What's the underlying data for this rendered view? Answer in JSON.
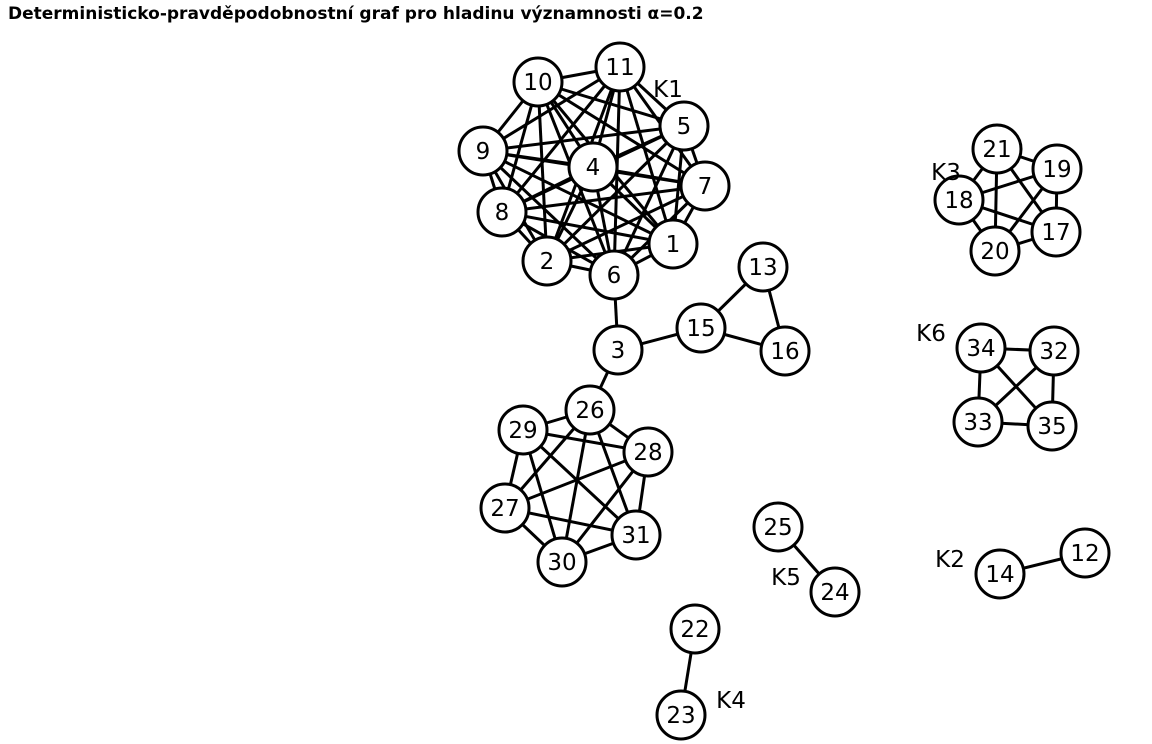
{
  "title": "Deterministicko-pravděpodobnostní graf pro hladinu významnosti α=0.2",
  "colors": {
    "node_fill": "#ffffff",
    "stroke": "#000000",
    "text": "#000000"
  },
  "clusters": [
    {
      "label": "K1",
      "nodes": [
        "1",
        "2",
        "4",
        "5",
        "6",
        "7",
        "8",
        "9",
        "10",
        "11"
      ]
    },
    {
      "label": "K2",
      "nodes": [
        "12",
        "14"
      ]
    },
    {
      "label": "K3",
      "nodes": [
        "17",
        "18",
        "19",
        "20",
        "21"
      ]
    },
    {
      "label": "K4",
      "nodes": [
        "22",
        "23"
      ]
    },
    {
      "label": "K5",
      "nodes": [
        "24",
        "25"
      ]
    },
    {
      "label": "K6",
      "nodes": [
        "32",
        "33",
        "34",
        "35"
      ]
    }
  ],
  "nodes": [
    "1",
    "2",
    "3",
    "4",
    "5",
    "6",
    "7",
    "8",
    "9",
    "10",
    "11",
    "12",
    "13",
    "14",
    "15",
    "16",
    "17",
    "18",
    "19",
    "20",
    "21",
    "22",
    "23",
    "24",
    "25",
    "26",
    "27",
    "28",
    "29",
    "30",
    "31",
    "32",
    "33",
    "34",
    "35"
  ],
  "edges": [
    [
      "1",
      "2"
    ],
    [
      "1",
      "4"
    ],
    [
      "1",
      "5"
    ],
    [
      "1",
      "6"
    ],
    [
      "1",
      "7"
    ],
    [
      "1",
      "8"
    ],
    [
      "1",
      "9"
    ],
    [
      "1",
      "10"
    ],
    [
      "1",
      "11"
    ],
    [
      "2",
      "4"
    ],
    [
      "2",
      "5"
    ],
    [
      "2",
      "6"
    ],
    [
      "2",
      "7"
    ],
    [
      "2",
      "8"
    ],
    [
      "2",
      "9"
    ],
    [
      "2",
      "10"
    ],
    [
      "2",
      "11"
    ],
    [
      "4",
      "5"
    ],
    [
      "4",
      "6"
    ],
    [
      "4",
      "7"
    ],
    [
      "4",
      "8"
    ],
    [
      "4",
      "9"
    ],
    [
      "4",
      "10"
    ],
    [
      "4",
      "11"
    ],
    [
      "5",
      "6"
    ],
    [
      "5",
      "7"
    ],
    [
      "5",
      "8"
    ],
    [
      "5",
      "9"
    ],
    [
      "5",
      "10"
    ],
    [
      "5",
      "11"
    ],
    [
      "6",
      "7"
    ],
    [
      "6",
      "8"
    ],
    [
      "6",
      "9"
    ],
    [
      "6",
      "10"
    ],
    [
      "6",
      "11"
    ],
    [
      "7",
      "8"
    ],
    [
      "7",
      "9"
    ],
    [
      "7",
      "10"
    ],
    [
      "7",
      "11"
    ],
    [
      "8",
      "9"
    ],
    [
      "8",
      "10"
    ],
    [
      "8",
      "11"
    ],
    [
      "9",
      "10"
    ],
    [
      "9",
      "11"
    ],
    [
      "10",
      "11"
    ],
    [
      "6",
      "3"
    ],
    [
      "3",
      "15"
    ],
    [
      "3",
      "26"
    ],
    [
      "15",
      "13"
    ],
    [
      "15",
      "16"
    ],
    [
      "13",
      "16"
    ],
    [
      "26",
      "27"
    ],
    [
      "26",
      "28"
    ],
    [
      "26",
      "29"
    ],
    [
      "26",
      "30"
    ],
    [
      "26",
      "31"
    ],
    [
      "27",
      "28"
    ],
    [
      "27",
      "29"
    ],
    [
      "27",
      "30"
    ],
    [
      "27",
      "31"
    ],
    [
      "28",
      "29"
    ],
    [
      "28",
      "30"
    ],
    [
      "28",
      "31"
    ],
    [
      "29",
      "30"
    ],
    [
      "29",
      "31"
    ],
    [
      "30",
      "31"
    ],
    [
      "17",
      "18"
    ],
    [
      "17",
      "19"
    ],
    [
      "17",
      "20"
    ],
    [
      "17",
      "21"
    ],
    [
      "18",
      "19"
    ],
    [
      "18",
      "20"
    ],
    [
      "18",
      "21"
    ],
    [
      "19",
      "20"
    ],
    [
      "19",
      "21"
    ],
    [
      "20",
      "21"
    ],
    [
      "32",
      "33"
    ],
    [
      "32",
      "34"
    ],
    [
      "32",
      "35"
    ],
    [
      "33",
      "34"
    ],
    [
      "33",
      "35"
    ],
    [
      "34",
      "35"
    ],
    [
      "12",
      "14"
    ],
    [
      "24",
      "25"
    ],
    [
      "22",
      "23"
    ]
  ]
}
